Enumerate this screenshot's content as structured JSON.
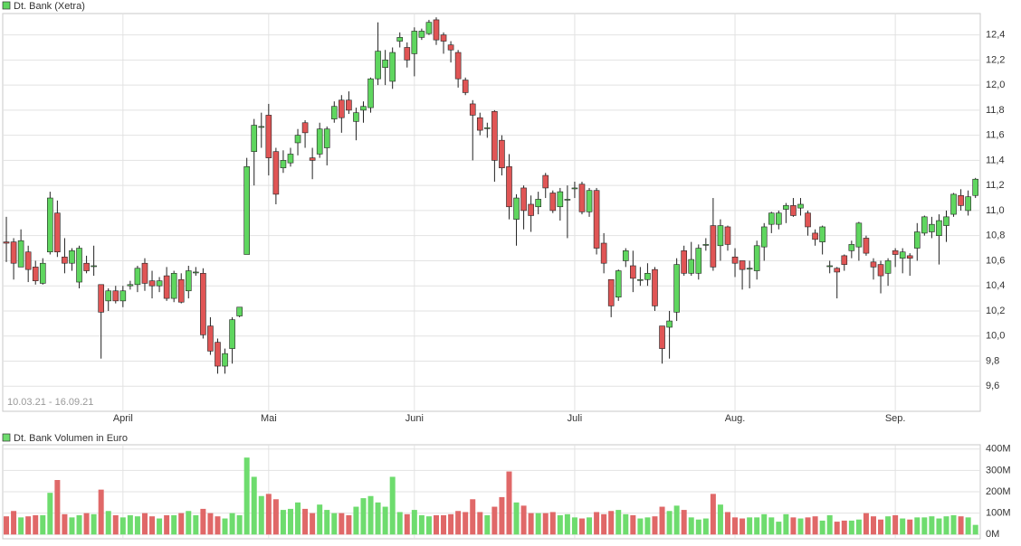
{
  "chart_data": [
    {
      "type": "candlestick",
      "legend": "Dt. Bank (Xetra)",
      "date_range": "10.03.21 - 16.09.21",
      "up_color": "#5fd65f",
      "down_color": "#e05555",
      "grid": true,
      "xlim": [
        -0.5,
        133.66
      ],
      "ylim": [
        9.4,
        12.57
      ],
      "yticks": [
        {
          "value": 9.6,
          "label": "9,6"
        },
        {
          "value": 9.8,
          "label": "9,8"
        },
        {
          "value": 10.0,
          "label": "10,0"
        },
        {
          "value": 10.2,
          "label": "10,2"
        },
        {
          "value": 10.4,
          "label": "10,4"
        },
        {
          "value": 10.6,
          "label": "10,6"
        },
        {
          "value": 10.8,
          "label": "10,8"
        },
        {
          "value": 11.0,
          "label": "11,0"
        },
        {
          "value": 11.2,
          "label": "11,2"
        },
        {
          "value": 11.4,
          "label": "11,4"
        },
        {
          "value": 11.6,
          "label": "11,6"
        },
        {
          "value": 11.8,
          "label": "11,8"
        },
        {
          "value": 12.0,
          "label": "12,0"
        },
        {
          "value": 12.2,
          "label": "12,2"
        },
        {
          "value": 12.4,
          "label": "12,4"
        }
      ],
      "xticks": [
        {
          "value": 16,
          "label": "April"
        },
        {
          "value": 36,
          "label": "Mai"
        },
        {
          "value": 56,
          "label": "Juni"
        },
        {
          "value": 78,
          "label": "Juli"
        },
        {
          "value": 100,
          "label": "Aug."
        },
        {
          "value": 122,
          "label": "Sep."
        }
      ],
      "open": [
        10.75,
        10.75,
        10.55,
        10.67,
        10.55,
        10.42,
        10.67,
        10.98,
        10.63,
        10.58,
        10.43,
        10.58,
        10.56,
        10.41,
        10.28,
        10.36,
        10.28,
        10.4,
        10.41,
        10.58,
        10.44,
        10.4,
        10.48,
        10.3,
        10.45,
        10.36,
        10.51,
        10.5,
        10.08,
        9.95,
        9.76,
        9.9,
        10.16,
        10.65,
        11.47,
        11.67,
        11.76,
        11.47,
        11.34,
        11.38,
        11.54,
        11.7,
        11.42,
        11.45,
        11.5,
        11.73,
        11.88,
        11.88,
        11.71,
        11.8,
        11.82,
        12.05,
        12.14,
        12.03,
        12.35,
        12.3,
        12.25,
        12.38,
        12.41,
        12.52,
        12.4,
        12.32,
        12.26,
        12.04,
        11.85,
        11.74,
        11.66,
        11.79,
        11.56,
        11.35,
        10.93,
        11.18,
        11.05,
        11.03,
        11.28,
        11.14,
        11.03,
        11.09,
        11.18,
        11.21,
        10.99,
        11.16,
        10.74,
        10.45,
        10.31,
        10.6,
        10.56,
        10.45,
        10.45,
        10.53,
        10.08,
        10.07,
        10.19,
        10.68,
        10.5,
        10.5,
        10.73,
        10.88,
        10.72,
        10.87,
        10.63,
        10.6,
        10.54,
        10.52,
        10.71,
        10.89,
        10.89,
        11.01,
        11.04,
        11.02,
        10.98,
        10.82,
        10.75,
        10.56,
        10.54,
        10.64,
        10.68,
        10.71,
        10.78,
        10.59,
        10.57,
        10.5,
        10.68,
        10.62,
        10.64,
        10.7,
        10.82,
        10.83,
        10.8,
        10.88,
        10.97,
        11.12,
        11.0,
        11.12
      ],
      "high": [
        10.95,
        10.78,
        10.85,
        10.72,
        10.6,
        10.62,
        11.15,
        11.08,
        10.78,
        10.7,
        10.72,
        10.64,
        10.72,
        10.41,
        10.38,
        10.4,
        10.4,
        10.44,
        10.56,
        10.62,
        10.52,
        10.47,
        10.55,
        10.52,
        10.5,
        10.56,
        10.55,
        10.54,
        10.15,
        9.98,
        9.9,
        10.15,
        10.23,
        11.42,
        11.73,
        11.78,
        11.85,
        11.5,
        11.48,
        11.5,
        11.65,
        11.72,
        11.5,
        11.7,
        11.67,
        11.87,
        11.92,
        11.95,
        11.82,
        11.87,
        12.06,
        12.5,
        12.28,
        12.3,
        12.42,
        12.34,
        12.46,
        12.45,
        12.52,
        12.54,
        12.42,
        12.35,
        12.28,
        12.06,
        11.88,
        11.78,
        11.7,
        11.8,
        11.6,
        11.45,
        11.13,
        11.2,
        11.12,
        11.15,
        11.3,
        11.16,
        11.18,
        11.2,
        11.23,
        11.23,
        11.18,
        11.18,
        10.82,
        10.45,
        10.53,
        10.7,
        10.68,
        10.55,
        10.58,
        10.55,
        10.08,
        10.2,
        10.62,
        10.72,
        10.75,
        10.73,
        10.78,
        11.1,
        10.93,
        10.88,
        10.7,
        10.6,
        10.6,
        10.76,
        10.9,
        10.99,
        11.0,
        11.06,
        11.1,
        11.1,
        11.0,
        10.85,
        10.88,
        10.6,
        10.55,
        10.65,
        10.76,
        10.91,
        10.8,
        10.62,
        10.6,
        10.62,
        10.7,
        10.7,
        10.66,
        10.9,
        10.96,
        10.95,
        10.97,
        11.0,
        11.14,
        11.17,
        11.16,
        11.26
      ],
      "low": [
        10.59,
        10.45,
        10.55,
        10.43,
        10.41,
        10.41,
        10.65,
        10.63,
        10.5,
        10.52,
        10.38,
        10.5,
        10.48,
        9.82,
        10.2,
        10.26,
        10.23,
        10.37,
        10.35,
        10.36,
        10.3,
        10.35,
        10.28,
        10.27,
        10.26,
        10.3,
        10.48,
        9.98,
        9.85,
        9.7,
        9.7,
        9.78,
        10.15,
        10.65,
        11.2,
        11.5,
        11.28,
        11.05,
        11.3,
        11.35,
        11.44,
        11.5,
        11.25,
        11.42,
        11.36,
        11.7,
        11.62,
        11.77,
        11.56,
        11.7,
        11.78,
        12.0,
        12.0,
        11.97,
        12.3,
        12.14,
        12.07,
        12.36,
        12.4,
        12.32,
        12.25,
        12.18,
        11.98,
        11.92,
        11.4,
        11.6,
        11.58,
        11.23,
        11.28,
        10.93,
        10.72,
        10.85,
        10.83,
        10.97,
        11.1,
        10.98,
        10.92,
        10.78,
        11.1,
        10.97,
        10.95,
        10.65,
        10.5,
        10.15,
        10.28,
        10.55,
        10.35,
        10.4,
        10.4,
        10.2,
        9.78,
        9.82,
        10.12,
        10.48,
        10.48,
        10.45,
        10.68,
        10.52,
        10.6,
        10.68,
        10.47,
        10.37,
        10.38,
        10.45,
        10.6,
        10.82,
        10.85,
        10.9,
        10.95,
        10.96,
        10.8,
        10.72,
        10.65,
        10.5,
        10.3,
        10.52,
        10.62,
        10.6,
        10.64,
        10.45,
        10.34,
        10.4,
        10.55,
        10.5,
        10.48,
        10.6,
        10.8,
        10.78,
        10.57,
        10.75,
        10.95,
        11.0,
        10.96,
        11.1
      ],
      "close": [
        10.74,
        10.58,
        10.76,
        10.53,
        10.44,
        10.58,
        11.1,
        10.67,
        10.58,
        10.68,
        10.7,
        10.52,
        10.56,
        10.19,
        10.36,
        10.28,
        10.36,
        10.41,
        10.54,
        10.42,
        10.4,
        10.44,
        10.3,
        10.5,
        10.27,
        10.52,
        10.51,
        10.01,
        9.88,
        9.76,
        9.86,
        10.13,
        10.23,
        11.35,
        11.68,
        11.67,
        11.42,
        11.13,
        11.4,
        11.45,
        11.6,
        11.62,
        11.4,
        11.65,
        11.65,
        11.83,
        11.74,
        11.8,
        11.78,
        11.83,
        12.05,
        12.27,
        12.2,
        12.26,
        12.38,
        12.2,
        12.43,
        12.43,
        12.5,
        12.36,
        12.35,
        12.28,
        12.05,
        11.94,
        11.76,
        11.64,
        11.66,
        11.4,
        11.34,
        11.03,
        11.1,
        11.0,
        10.96,
        11.09,
        11.18,
        11.0,
        11.15,
        11.09,
        11.18,
        10.99,
        11.16,
        10.7,
        10.58,
        10.24,
        10.52,
        10.68,
        10.46,
        10.45,
        10.5,
        10.24,
        9.9,
        10.12,
        10.57,
        10.5,
        10.61,
        10.7,
        10.73,
        10.55,
        10.88,
        10.73,
        10.58,
        10.53,
        10.54,
        10.72,
        10.87,
        10.98,
        10.98,
        11.04,
        10.96,
        11.05,
        10.87,
        10.77,
        10.87,
        10.56,
        10.51,
        10.57,
        10.73,
        10.9,
        10.66,
        10.55,
        10.48,
        10.6,
        10.65,
        10.67,
        10.62,
        10.83,
        10.95,
        10.89,
        10.92,
        10.95,
        11.13,
        11.04,
        11.11,
        11.25
      ]
    },
    {
      "type": "bar",
      "legend": "Dt. Bank Volumen in Euro",
      "up_color": "#6edc6e",
      "down_color": "#e06868",
      "grid": true,
      "ylim": [
        -20,
        420
      ],
      "yticks": [
        {
          "value": 0,
          "label": "0M"
        },
        {
          "value": 100,
          "label": "100M"
        },
        {
          "value": 200,
          "label": "200M"
        },
        {
          "value": 300,
          "label": "300M"
        },
        {
          "value": 400,
          "label": "400M"
        }
      ],
      "values": [
        85,
        110,
        80,
        85,
        90,
        90,
        195,
        255,
        95,
        80,
        90,
        100,
        95,
        210,
        110,
        90,
        80,
        90,
        85,
        100,
        85,
        75,
        90,
        90,
        100,
        110,
        90,
        120,
        100,
        85,
        75,
        100,
        90,
        360,
        270,
        180,
        190,
        165,
        115,
        120,
        150,
        120,
        100,
        140,
        115,
        100,
        100,
        90,
        130,
        170,
        180,
        150,
        130,
        270,
        105,
        95,
        115,
        90,
        85,
        90,
        90,
        95,
        110,
        105,
        165,
        105,
        90,
        130,
        175,
        295,
        150,
        135,
        100,
        100,
        100,
        105,
        90,
        95,
        80,
        75,
        80,
        105,
        95,
        110,
        115,
        95,
        90,
        75,
        80,
        85,
        130,
        110,
        135,
        115,
        80,
        70,
        75,
        190,
        140,
        105,
        80,
        75,
        80,
        80,
        95,
        80,
        60,
        95,
        80,
        75,
        80,
        85,
        65,
        90,
        60,
        65,
        65,
        70,
        100,
        85,
        70,
        85,
        90,
        75,
        70,
        80,
        80,
        85,
        75,
        85,
        90,
        85,
        80,
        45
      ]
    }
  ]
}
